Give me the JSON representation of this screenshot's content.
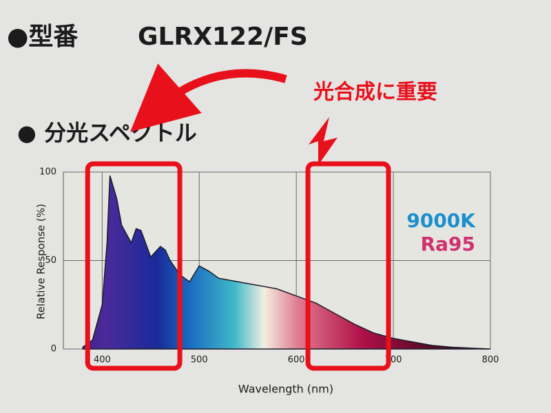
{
  "header": {
    "model_label": "●型番",
    "model": "GLRX122/FS",
    "section": "● 分光スペクトル"
  },
  "annotation": "光合成に重要",
  "chart_data": {
    "type": "area",
    "xlabel": "Wavelength (nm)",
    "ylabel": "Relative Response (%)",
    "labels": [
      {
        "text": "9000K",
        "color": "#1a8fd0"
      },
      {
        "text": "Ra95",
        "color": "#d0306e"
      }
    ],
    "x": [
      380,
      390,
      400,
      405,
      408,
      415,
      420,
      430,
      435,
      440,
      450,
      460,
      465,
      470,
      480,
      490,
      500,
      510,
      520,
      540,
      560,
      580,
      600,
      620,
      640,
      660,
      680,
      700,
      720,
      740,
      760,
      780,
      800
    ],
    "values": [
      1,
      5,
      25,
      60,
      98,
      85,
      70,
      60,
      68,
      67,
      52,
      58,
      56,
      50,
      42,
      38,
      47,
      44,
      40,
      38,
      36,
      34,
      30,
      26,
      20,
      14,
      9,
      6,
      4,
      2,
      1,
      0.5,
      0
    ],
    "color": "#1a1a2a",
    "highlights": [
      {
        "x0": 385,
        "x1": 480
      },
      {
        "x0": 612,
        "x1": 695
      }
    ],
    "highlight_color": "#e8101a",
    "xlim": [
      360,
      800
    ],
    "ylim": [
      0,
      100
    ],
    "xticks": [
      400,
      500,
      600,
      700,
      800
    ],
    "yticks": [
      0,
      50,
      100
    ],
    "grid": true
  }
}
